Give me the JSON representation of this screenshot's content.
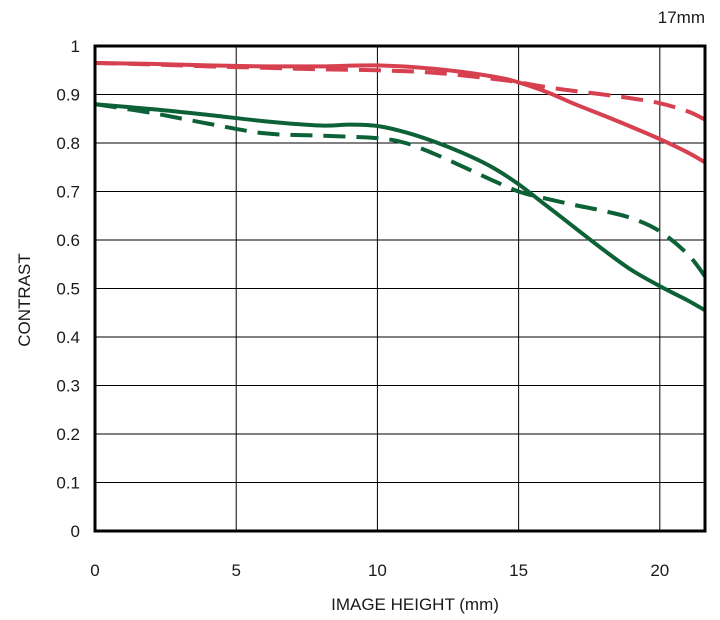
{
  "chart_data": {
    "type": "line",
    "title": "17mm",
    "xlabel": "IMAGE HEIGHT (mm)",
    "ylabel": "CONTRAST",
    "xlim": [
      0,
      21.6
    ],
    "ylim": [
      0,
      1
    ],
    "xticks": [
      0,
      5,
      10,
      15,
      20
    ],
    "xtick_labels": [
      "0",
      "5",
      "10",
      "15",
      "20"
    ],
    "yticks": [
      0,
      0.1,
      0.2,
      0.3,
      0.4,
      0.5,
      0.6,
      0.7,
      0.8,
      0.9,
      1
    ],
    "ytick_labels": [
      "0",
      "0.1",
      "0.2",
      "0.3",
      "0.4",
      "0.5",
      "0.6",
      "0.7",
      "0.8",
      "0.9",
      "1"
    ],
    "grid": true,
    "series": [
      {
        "color": "#d6404f",
        "dash": "solid",
        "x": [
          0,
          2,
          4,
          6,
          8,
          10,
          12,
          14,
          15,
          16,
          17,
          18,
          19,
          20,
          21,
          21.6
        ],
        "y": [
          0.965,
          0.963,
          0.96,
          0.958,
          0.958,
          0.96,
          0.953,
          0.938,
          0.925,
          0.905,
          0.88,
          0.857,
          0.833,
          0.808,
          0.78,
          0.76
        ]
      },
      {
        "color": "#d6404f",
        "dash": "dashed",
        "x": [
          0,
          2,
          4,
          6,
          8,
          10,
          12,
          14,
          15,
          16,
          17,
          18,
          19,
          20,
          21,
          21.6
        ],
        "y": [
          0.965,
          0.962,
          0.958,
          0.955,
          0.952,
          0.95,
          0.945,
          0.933,
          0.925,
          0.915,
          0.907,
          0.9,
          0.892,
          0.882,
          0.865,
          0.848
        ]
      },
      {
        "color": "#0d6137",
        "dash": "solid",
        "x": [
          0,
          2,
          4,
          6,
          8,
          9,
          10,
          11,
          12,
          13,
          14,
          15,
          16,
          17,
          18,
          19,
          20,
          21,
          21.6
        ],
        "y": [
          0.88,
          0.87,
          0.858,
          0.845,
          0.836,
          0.838,
          0.835,
          0.822,
          0.803,
          0.78,
          0.752,
          0.715,
          0.67,
          0.625,
          0.58,
          0.538,
          0.505,
          0.475,
          0.455
        ]
      },
      {
        "color": "#0d6137",
        "dash": "dashed",
        "x": [
          0,
          2,
          4,
          6,
          8,
          10,
          11,
          12,
          13,
          14,
          15,
          16,
          17,
          18,
          19,
          20,
          21,
          21.6
        ],
        "y": [
          0.88,
          0.862,
          0.84,
          0.82,
          0.815,
          0.81,
          0.8,
          0.778,
          0.752,
          0.725,
          0.7,
          0.685,
          0.672,
          0.66,
          0.645,
          0.618,
          0.57,
          0.525
        ]
      }
    ]
  }
}
